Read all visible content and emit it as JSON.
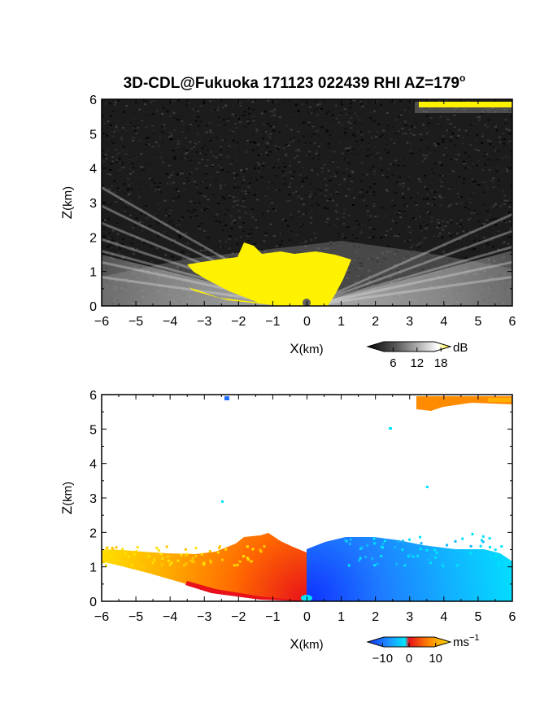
{
  "figure": {
    "title_main": "3D-CDL@Fukuoka 171123 022439 RHI AZ=179",
    "title_sup": "o"
  },
  "chart_data": [
    {
      "type": "heatmap",
      "name": "backscatter",
      "quantity": "intensity",
      "xlabel_main": "X",
      "xlabel_unit": "(km)",
      "ylabel_main": "Z",
      "ylabel_unit": "(km)",
      "xlim": [
        -6,
        6
      ],
      "ylim": [
        0,
        6
      ],
      "xticks": [
        "−6",
        "−5",
        "−4",
        "−3",
        "−2",
        "−1",
        "0",
        "1",
        "2",
        "3",
        "4",
        "5",
        "6"
      ],
      "yticks": [
        "0",
        "1",
        "2",
        "3",
        "4",
        "5",
        "6"
      ],
      "colorbar": {
        "unit": "dB",
        "ticks": [
          "6",
          "12",
          "18"
        ],
        "range": [
          0,
          20
        ],
        "colors": [
          "#050505",
          "#5a5a5a",
          "#bdbdbd",
          "#ffffff",
          "#fff200"
        ]
      },
      "features": {
        "near_range_saturated_region_km": {
          "x": [
            -2.2,
            1.4
          ],
          "z": [
            0,
            2.0
          ]
        },
        "upper_layer_km": {
          "x": [
            3.3,
            6.0
          ],
          "z": [
            5.7,
            6.0
          ],
          "color": "#fff200"
        },
        "background": "noise"
      }
    },
    {
      "type": "heatmap",
      "name": "doppler_velocity",
      "quantity": "radial velocity",
      "xlabel_main": "X",
      "xlabel_unit": "(km)",
      "ylabel_main": "Z",
      "ylabel_unit": "(km)",
      "xlim": [
        -6,
        6
      ],
      "ylim": [
        0,
        6
      ],
      "xticks": [
        "−6",
        "−5",
        "−4",
        "−3",
        "−2",
        "−1",
        "0",
        "1",
        "2",
        "3",
        "4",
        "5",
        "6"
      ],
      "yticks": [
        "0",
        "1",
        "2",
        "3",
        "4",
        "5",
        "6"
      ],
      "colorbar": {
        "unit_main": "ms",
        "unit_sup": "−1",
        "ticks": [
          "−10",
          "0",
          "10"
        ],
        "range": [
          -15,
          15
        ],
        "colors": [
          "#1030ff",
          "#1e90ff",
          "#00e5ff",
          "#e8101a",
          "#ff8c00",
          "#ffe000"
        ]
      },
      "features": {
        "negative_x_sign": "positive (red–yellow)",
        "positive_x_sign": "negative (blue–cyan)",
        "boundary_layer_top_km": 1.9,
        "upper_layer_km": {
          "x": [
            3.2,
            6.0
          ],
          "z": [
            5.7,
            6.0
          ],
          "color": "#ff8c00"
        }
      }
    }
  ]
}
